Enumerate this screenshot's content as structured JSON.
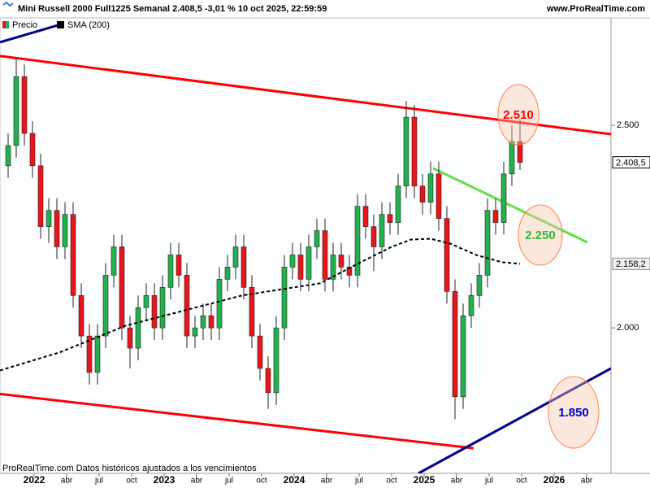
{
  "chart_data": {
    "type": "candlestick",
    "title": "Mini Russell 2000 Full1225 Semanal 2.408,5 -3,01 % 10 oct 2025, 22:59:59",
    "source": "www.ProRealTime.com",
    "footer": "ProRealTime.com  Datos históricos ajustados a los vencimientos",
    "xlim": [
      2021.7375,
      2026.4375
    ],
    "ylim": [
      1641,
      2765
    ],
    "xticks": [
      {
        "value": 2022,
        "label": "2022"
      },
      {
        "value": 2022.25,
        "label": "abr"
      },
      {
        "value": 2022.5,
        "label": "jul"
      },
      {
        "value": 2022.75,
        "label": "oct"
      },
      {
        "value": 2023,
        "label": "2023"
      },
      {
        "value": 2023.25,
        "label": "abr"
      },
      {
        "value": 2023.5,
        "label": "jul"
      },
      {
        "value": 2023.75,
        "label": "oct"
      },
      {
        "value": 2024,
        "label": "2024"
      },
      {
        "value": 2024.25,
        "label": "abr"
      },
      {
        "value": 2024.5,
        "label": "jul"
      },
      {
        "value": 2024.75,
        "label": "oct"
      },
      {
        "value": 2025,
        "label": "2025"
      },
      {
        "value": 2025.25,
        "label": "abr"
      },
      {
        "value": 2025.5,
        "label": "jul"
      },
      {
        "value": 2025.75,
        "label": "oct"
      },
      {
        "value": 2026,
        "label": "2026"
      },
      {
        "value": 2026.25,
        "label": "abr"
      }
    ],
    "yticks": [
      {
        "value": 2000,
        "label": "2.000"
      },
      {
        "value": 2500,
        "label": "2.500"
      }
    ],
    "series": [
      {
        "name": "Precio",
        "type": "candlestick",
        "up_color": "#22b14c",
        "down_color": "#e8151b",
        "x": [
          2021.8,
          2021.8625,
          2021.925,
          2021.9875,
          2022.05,
          2022.1125,
          2022.175,
          2022.2375,
          2022.3,
          2022.3625,
          2022.425,
          2022.4875,
          2022.55,
          2022.6125,
          2022.675,
          2022.7375,
          2022.8,
          2022.8625,
          2022.925,
          2022.9875,
          2023.05,
          2023.1125,
          2023.175,
          2023.2375,
          2023.3,
          2023.3625,
          2023.425,
          2023.4875,
          2023.55,
          2023.6125,
          2023.675,
          2023.7375,
          2023.8,
          2023.8625,
          2023.925,
          2023.9875,
          2024.05,
          2024.1125,
          2024.175,
          2024.2375,
          2024.3,
          2024.3625,
          2024.425,
          2024.4875,
          2024.55,
          2024.6125,
          2024.675,
          2024.7375,
          2024.8,
          2024.8625,
          2024.925,
          2024.9875,
          2025.05,
          2025.1125,
          2025.175,
          2025.2375,
          2025.3,
          2025.3625,
          2025.425,
          2025.4875,
          2025.55,
          2025.6125,
          2025.675,
          2025.7375
        ],
        "open": [
          2400,
          2450,
          2620,
          2480,
          2400,
          2250,
          2290,
          2200,
          2280,
          2080,
          1980,
          1890,
          1980,
          2130,
          2200,
          2000,
          1950,
          2050,
          2080,
          2000,
          2100,
          2180,
          2130,
          1980,
          2000,
          2030,
          2000,
          2120,
          2150,
          2200,
          2100,
          1980,
          1900,
          1840,
          2000,
          2150,
          2180,
          2120,
          2200,
          2240,
          2120,
          2180,
          2150,
          2130,
          2300,
          2250,
          2200,
          2280,
          2260,
          2350,
          2520,
          2350,
          2310,
          2380,
          2270,
          2090,
          1830,
          2030,
          2080,
          2130,
          2290,
          2260,
          2380,
          2460
        ],
        "high": [
          2480,
          2665,
          2650,
          2510,
          2430,
          2320,
          2320,
          2310,
          2310,
          2110,
          2010,
          2010,
          2160,
          2230,
          2230,
          2030,
          2080,
          2110,
          2110,
          2130,
          2210,
          2210,
          2160,
          2030,
          2060,
          2060,
          2150,
          2180,
          2230,
          2230,
          2130,
          2010,
          1930,
          2030,
          2180,
          2210,
          2210,
          2230,
          2270,
          2270,
          2210,
          2210,
          2180,
          2330,
          2330,
          2280,
          2310,
          2310,
          2380,
          2560,
          2550,
          2380,
          2410,
          2410,
          2300,
          2120,
          2060,
          2110,
          2160,
          2320,
          2320,
          2410,
          2500,
          2515
        ],
        "low": [
          2370,
          2420,
          2450,
          2370,
          2220,
          2210,
          2170,
          2170,
          2050,
          1950,
          1860,
          1860,
          1950,
          2100,
          1970,
          1900,
          1920,
          2020,
          1970,
          1970,
          2070,
          2100,
          1950,
          1950,
          1970,
          1970,
          1970,
          2090,
          2120,
          2070,
          1950,
          1870,
          1800,
          1810,
          1970,
          2120,
          2090,
          2090,
          2170,
          2090,
          2090,
          2120,
          2100,
          2100,
          2220,
          2140,
          2170,
          2230,
          2230,
          2320,
          2320,
          2280,
          2280,
          2240,
          2060,
          1775,
          1800,
          2000,
          2050,
          2100,
          2230,
          2230,
          2350,
          2390
        ],
        "close": [
          2450,
          2620,
          2480,
          2400,
          2250,
          2290,
          2200,
          2280,
          2080,
          1980,
          1890,
          1980,
          2130,
          2200,
          2000,
          1950,
          2050,
          2080,
          2000,
          2100,
          2180,
          2130,
          1980,
          2000,
          2030,
          2000,
          2120,
          2150,
          2200,
          2100,
          1980,
          1900,
          1840,
          2000,
          2150,
          2180,
          2120,
          2200,
          2240,
          2120,
          2180,
          2150,
          2130,
          2300,
          2250,
          2200,
          2280,
          2260,
          2350,
          2520,
          2350,
          2310,
          2380,
          2270,
          2090,
          1830,
          2030,
          2080,
          2130,
          2290,
          2260,
          2380,
          2460,
          2408.5
        ]
      },
      {
        "name": "SMA (200)",
        "type": "line",
        "color": "#000000",
        "dashed": true,
        "x": [
          2021.7375,
          2022.2,
          2022.7,
          2023.0,
          2023.3,
          2023.6,
          2023.9,
          2024.0,
          2024.2,
          2024.5,
          2024.75,
          2024.9,
          2025.05,
          2025.2,
          2025.4,
          2025.6,
          2025.7375
        ],
        "values": [
          1895,
          1940,
          2005,
          2030,
          2055,
          2080,
          2095,
          2100,
          2110,
          2160,
          2200,
          2218,
          2220,
          2208,
          2180,
          2162,
          2158.2
        ]
      }
    ],
    "last_price": {
      "value": 2408.5,
      "label": "2.408,5"
    },
    "sma_last": {
      "value": 2158.2,
      "label": "2.158,2"
    },
    "trend_lines": [
      {
        "color": "#ff0000",
        "x": [
          2021.7375,
          2026.4375
        ],
        "values": [
          2671,
          2478
        ]
      },
      {
        "color": "#ff0000",
        "x": [
          2021.7375,
          2025.38
        ],
        "values": [
          1837,
          1703
        ]
      },
      {
        "color": "#00008b",
        "x": [
          2024.956,
          2026.4375
        ],
        "values": [
          1641,
          1900
        ]
      },
      {
        "color": "#00008b",
        "x": [
          2021.7375,
          2022.206
        ],
        "values": [
          2705,
          2749
        ]
      },
      {
        "color": "#66dd44",
        "x": [
          2025.069,
          2026.256
        ],
        "values": [
          2394,
          2211
        ]
      }
    ],
    "annotations": [
      {
        "text": "2.510",
        "color": "#ff0000"
      },
      {
        "text": "2.250",
        "color": "#33b833"
      },
      {
        "text": "1.850",
        "color": "#0000cc"
      }
    ]
  }
}
